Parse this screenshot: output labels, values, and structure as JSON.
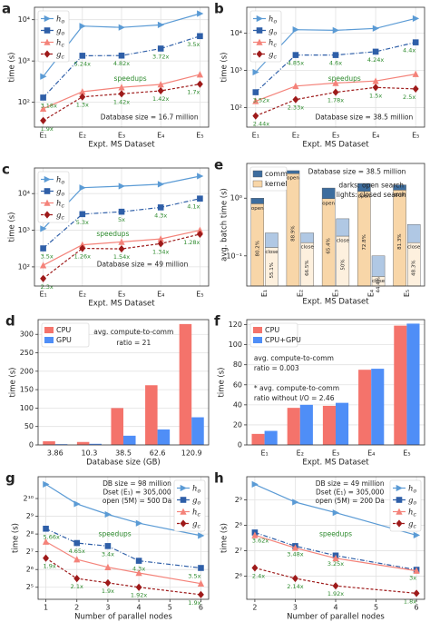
{
  "chart_data": [
    {
      "type": "line",
      "panel": "a",
      "yscale": "log",
      "grid": true,
      "legend": "upper left",
      "ylabel": "time (s)",
      "xlabel": "Expt. MS Dataset",
      "categories": [
        "E₁",
        "E₂",
        "E₃",
        "E₄",
        "E₅"
      ],
      "ylim": [
        25,
        20000
      ],
      "yticks": [
        {
          "value": 100,
          "label": "10²"
        },
        {
          "value": 1000,
          "label": "10³"
        },
        {
          "value": 10000,
          "label": "10⁴"
        }
      ],
      "series": [
        {
          "name": "h",
          "sub": "o",
          "color": "#5b9bd5",
          "marker": ">",
          "linestyle": "solid",
          "values": [
            420,
            7000,
            6500,
            7500,
            14000
          ]
        },
        {
          "name": "g",
          "sub": "o",
          "color": "#2f5fa8",
          "marker": "s",
          "linestyle": "dashdot",
          "values": [
            130,
            1340,
            1350,
            2000,
            4000
          ]
        },
        {
          "name": "h",
          "sub": "c",
          "color": "#f4837a",
          "marker": "^",
          "linestyle": "solid",
          "values": [
            70,
            180,
            230,
            270,
            470
          ]
        },
        {
          "name": "g",
          "sub": "c",
          "color": "#9e1a1a",
          "marker": "D",
          "linestyle": "dashed",
          "values": [
            36,
            135,
            160,
            190,
            275
          ]
        }
      ],
      "speedup_labels": {
        "upper": [
          "3.18x",
          "5.24x",
          "4.82x",
          "3.72x",
          "3.5x"
        ],
        "lower": [
          "1.9x",
          "1.3x",
          "1.42x",
          "1.42x",
          "1.7x"
        ]
      },
      "notes": [
        "speedups",
        "Database size = 16.7 million"
      ]
    },
    {
      "type": "line",
      "panel": "b",
      "yscale": "log",
      "grid": true,
      "legend": "upper left",
      "ylabel": "time (s)",
      "xlabel": "Expt. MS Dataset",
      "categories": [
        "E₁",
        "E₂",
        "E₃",
        "E₄",
        "E₅"
      ],
      "ylim": [
        30,
        50000
      ],
      "yticks": [
        {
          "value": 100,
          "label": "10²"
        },
        {
          "value": 1000,
          "label": "10³"
        },
        {
          "value": 10000,
          "label": "10⁴"
        }
      ],
      "series": [
        {
          "name": "h",
          "sub": "o",
          "color": "#5b9bd5",
          "marker": ">",
          "linestyle": "solid",
          "values": [
            900,
            12500,
            12000,
            13500,
            25000
          ]
        },
        {
          "name": "g",
          "sub": "o",
          "color": "#2f5fa8",
          "marker": "s",
          "linestyle": "dashdot",
          "values": [
            260,
            2600,
            2600,
            3200,
            5700
          ]
        },
        {
          "name": "h",
          "sub": "c",
          "color": "#f4837a",
          "marker": "^",
          "linestyle": "solid",
          "values": [
            150,
            380,
            460,
            520,
            800
          ]
        },
        {
          "name": "g",
          "sub": "c",
          "color": "#9e1a1a",
          "marker": "D",
          "linestyle": "dashed",
          "values": [
            60,
            165,
            260,
            350,
            320
          ]
        }
      ],
      "speedup_labels": {
        "upper": [
          "3.52x",
          "4.85x",
          "4.6x",
          "4.24x",
          "4.4x"
        ],
        "lower": [
          "2.44x",
          "2.33x",
          "1.78x",
          "1.5x",
          "2.5x"
        ]
      },
      "notes": [
        "speedups",
        "Database size = 38.5 million"
      ]
    },
    {
      "type": "line",
      "panel": "c",
      "yscale": "log",
      "grid": true,
      "legend": "upper left",
      "ylabel": "time (s)",
      "xlabel": "Expt. MS Dataset",
      "categories": [
        "E₁",
        "E₂",
        "E₃",
        "E₄",
        "E₅"
      ],
      "ylim": [
        30,
        50000
      ],
      "yticks": [
        {
          "value": 100,
          "label": "10²"
        },
        {
          "value": 1000,
          "label": "10³"
        },
        {
          "value": 10000,
          "label": "10⁴"
        }
      ],
      "series": [
        {
          "name": "h",
          "sub": "o",
          "color": "#5b9bd5",
          "marker": ">",
          "linestyle": "solid",
          "values": [
            1100,
            14500,
            16000,
            18000,
            30000
          ]
        },
        {
          "name": "g",
          "sub": "o",
          "color": "#2f5fa8",
          "marker": "s",
          "linestyle": "dashdot",
          "values": [
            320,
            2750,
            3200,
            4200,
            7300
          ]
        },
        {
          "name": "h",
          "sub": "c",
          "color": "#f4837a",
          "marker": "^",
          "linestyle": "solid",
          "values": [
            110,
            400,
            480,
            580,
            1000
          ]
        },
        {
          "name": "g",
          "sub": "c",
          "color": "#9e1a1a",
          "marker": "D",
          "linestyle": "dashed",
          "values": [
            48,
            320,
            310,
            430,
            780
          ]
        }
      ],
      "speedup_labels": {
        "upper": [
          "3.5x",
          "5.3x",
          "5x",
          "4.3x",
          "4.1x"
        ],
        "lower": [
          "2.3x",
          "1.26x",
          "1.54x",
          "1.34x",
          "1.28x"
        ]
      },
      "notes": [
        "speedups",
        "Database size = 49 million"
      ]
    },
    {
      "type": "stacked_bar",
      "panel": "e",
      "yscale": "log",
      "grid": false,
      "legend": "upper left",
      "ylabel": "avg. batch time (s)",
      "xlabel": "Expt. MS Dataset",
      "categories": [
        "E₁",
        "E₂",
        "E₃",
        "E₄",
        "E₅"
      ],
      "ylim": [
        0.03,
        4
      ],
      "yticks": [
        {
          "value": 0.1,
          "label": "10⁻¹"
        },
        {
          "value": 1,
          "label": "10⁰"
        }
      ],
      "series": [
        {
          "name": "comm",
          "color": "#3d6d9e",
          "light_color": "#b0c8e4",
          "open": [
            0.2,
            0.33,
            0.52,
            0.49,
            0.32
          ],
          "closed": [
            0.11,
            0.08,
            0.22,
            0.056,
            0.18
          ]
        },
        {
          "name": "kernel",
          "color": "#f8d6a8",
          "light_color": "#fdf0de",
          "open": [
            0.8,
            2.67,
            0.98,
            1.31,
            1.38
          ],
          "closed": [
            0.14,
            0.17,
            0.22,
            0.044,
            0.17
          ]
        }
      ],
      "bar_labels": {
        "open": "open",
        "closed": "close"
      },
      "pct_labels": {
        "open": [
          "80.2%",
          "88.9%",
          "65.4%",
          "72.8%",
          "81.3%"
        ],
        "closed": [
          "55.1%",
          "66.5%",
          "50%",
          "44.4%",
          "48.3%"
        ]
      },
      "notes": [
        "Database size = 38.5 million",
        "darks: open search",
        "lights: closed search"
      ]
    },
    {
      "type": "bar",
      "panel": "d",
      "grid": true,
      "legend": "upper left",
      "ylabel": "time (s)",
      "xlabel": "Database size (GB)",
      "categories": [
        "3.86",
        "10.3",
        "38.5",
        "62.6",
        "120.9"
      ],
      "ylim": [
        0,
        340
      ],
      "yticks": [
        0,
        50,
        100,
        150,
        200,
        250,
        300
      ],
      "series": [
        {
          "name": "CPU",
          "color": "#f4736b",
          "values": [
            10,
            8,
            100,
            162,
            328
          ]
        },
        {
          "name": "GPU",
          "color": "#4f8ef7",
          "values": [
            2,
            3,
            25,
            42,
            75
          ]
        }
      ],
      "notes": [
        "avg. compute-to-comm",
        "ratio = 21"
      ]
    },
    {
      "type": "bar",
      "panel": "f",
      "grid": true,
      "legend": "upper left",
      "ylabel": "time (s)",
      "xlabel": "Expt. MS Dataset",
      "categories": [
        "E₁",
        "E₂",
        "E₃",
        "E₄",
        "E₅"
      ],
      "ylim": [
        0,
        125
      ],
      "yticks": [
        0,
        20,
        40,
        60,
        80,
        100,
        120
      ],
      "series": [
        {
          "name": "CPU",
          "color": "#f4736b",
          "values": [
            11,
            37,
            39,
            75,
            119
          ]
        },
        {
          "name": "CPU+GPU",
          "color": "#4f8ef7",
          "values": [
            14,
            40,
            42,
            76,
            121
          ]
        }
      ],
      "notes": [
        "avg. compute-to-comm",
        "ratio = 0.003",
        "* avg. compute-to-comm",
        "ratio without I/O = 2.46"
      ]
    },
    {
      "type": "line",
      "panel": "g",
      "yscale": "log",
      "grid": true,
      "legend": "upper right",
      "ylabel": "time (s)",
      "xlabel": "Number of parallel nodes",
      "x": [
        1,
        2,
        3,
        4,
        6
      ],
      "xlim": [
        0.75,
        6.25
      ],
      "xticks": [
        1,
        2,
        3,
        4,
        5,
        6
      ],
      "ylim": [
        20,
        2400
      ],
      "yticks": [
        {
          "value": 32,
          "label": "2⁵"
        },
        {
          "value": 64,
          "label": "2⁶"
        },
        {
          "value": 128,
          "label": "2⁷"
        },
        {
          "value": 256,
          "label": "2⁸"
        },
        {
          "value": 512,
          "label": "2⁹"
        },
        {
          "value": 1024,
          "label": "2¹⁰"
        }
      ],
      "series": [
        {
          "name": "h",
          "sub": "o",
          "color": "#5b9bd5",
          "marker": ">",
          "linestyle": "solid",
          "values": [
            1780,
            830,
            550,
            390,
            240
          ]
        },
        {
          "name": "g",
          "sub": "o",
          "color": "#2f5fa8",
          "marker": "s",
          "linestyle": "dashdot",
          "values": [
            315,
            180,
            160,
            90,
            68
          ]
        },
        {
          "name": "h",
          "sub": "c",
          "color": "#f4837a",
          "marker": "^",
          "linestyle": "solid",
          "values": [
            190,
            95,
            70,
            56,
            37
          ]
        },
        {
          "name": "g",
          "sub": "c",
          "color": "#9e1a1a",
          "marker": "D",
          "linestyle": "dashed",
          "values": [
            100,
            45,
            38,
            32,
            24
          ]
        }
      ],
      "speedup_labels": {
        "upper": [
          "5.66x",
          "4.65x",
          "3.4x",
          "4.3x",
          "3.5x"
        ],
        "lower": [
          "1.9x",
          "2.1x",
          "1.9x",
          "1.92x",
          "1.9x"
        ]
      },
      "notes": [
        "DB size = 98 million",
        "Dset (E₁) = 305,000",
        "open (5M) = 500 Da",
        "speedups"
      ]
    },
    {
      "type": "line",
      "panel": "h",
      "yscale": "log",
      "grid": true,
      "legend": "upper right",
      "ylabel": "time (s)",
      "xlabel": "Number of parallel nodes",
      "x": [
        2,
        3,
        4,
        6
      ],
      "xlim": [
        1.8,
        6.2
      ],
      "xticks": [
        2,
        3,
        4,
        5,
        6
      ],
      "ylim": [
        34,
        960
      ],
      "yticks": [
        {
          "value": 64,
          "label": "2⁶"
        },
        {
          "value": 128,
          "label": "2⁷"
        },
        {
          "value": 256,
          "label": "2⁸"
        },
        {
          "value": 512,
          "label": "2⁹"
        }
      ],
      "series": [
        {
          "name": "h",
          "sub": "o",
          "color": "#5b9bd5",
          "marker": ">",
          "linestyle": "solid",
          "values": [
            780,
            480,
            360,
            195
          ]
        },
        {
          "name": "g",
          "sub": "o",
          "color": "#2f5fa8",
          "marker": "s",
          "linestyle": "dashdot",
          "values": [
            210,
            145,
            112,
            76
          ]
        },
        {
          "name": "h",
          "sub": "c",
          "color": "#f4837a",
          "marker": "^",
          "linestyle": "solid",
          "values": [
            195,
            138,
            104,
            74
          ]
        },
        {
          "name": "g",
          "sub": "c",
          "color": "#9e1a1a",
          "marker": "D",
          "linestyle": "dashed",
          "values": [
            80,
            60,
            49,
            40
          ]
        }
      ],
      "speedup_labels": {
        "upper": [
          "3.62x",
          "3.48x",
          "3.25x",
          "3x"
        ],
        "lower": [
          "2.4x",
          "2.14x",
          "1.92x",
          "1.8x"
        ]
      },
      "notes": [
        "DB size = 49 million",
        "Dset (E₁) = 305,000",
        "open (5M) = 200 Da",
        "speedups"
      ]
    }
  ]
}
